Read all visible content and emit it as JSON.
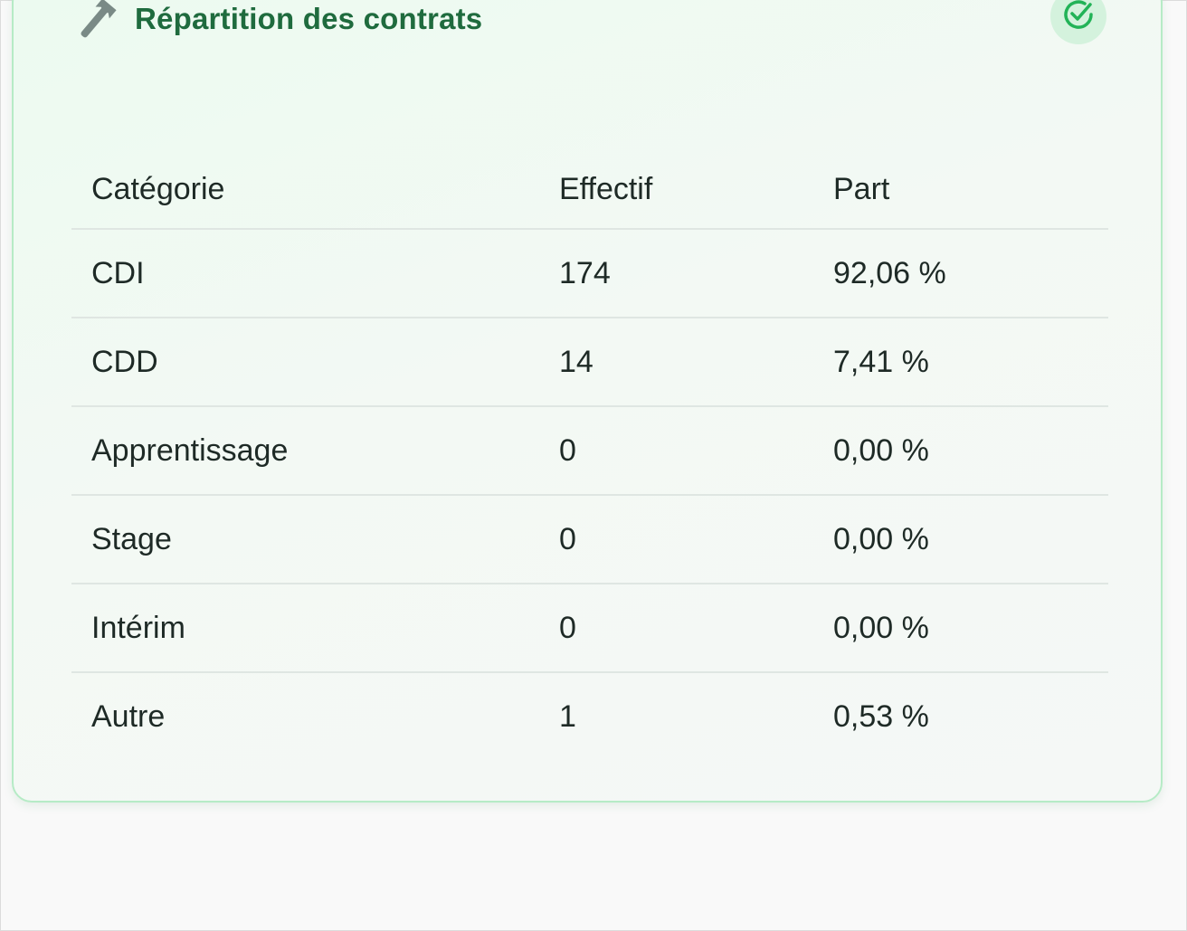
{
  "card": {
    "title": "Répartition des contrats",
    "header_icon": "wrench-icon",
    "status_icon": "check-circle-icon",
    "accent_color": "#1f6b3e",
    "status_color": "#22b357"
  },
  "table": {
    "headers": [
      "Catégorie",
      "Effectif",
      "Part"
    ],
    "rows": [
      [
        "CDI",
        "174",
        "92,06 %"
      ],
      [
        "CDD",
        "14",
        "7,41 %"
      ],
      [
        "Apprentissage",
        "0",
        "0,00 %"
      ],
      [
        "Stage",
        "0",
        "0,00 %"
      ],
      [
        "Intérim",
        "0",
        "0,00 %"
      ],
      [
        "Autre",
        "1",
        "0,53 %"
      ]
    ]
  }
}
